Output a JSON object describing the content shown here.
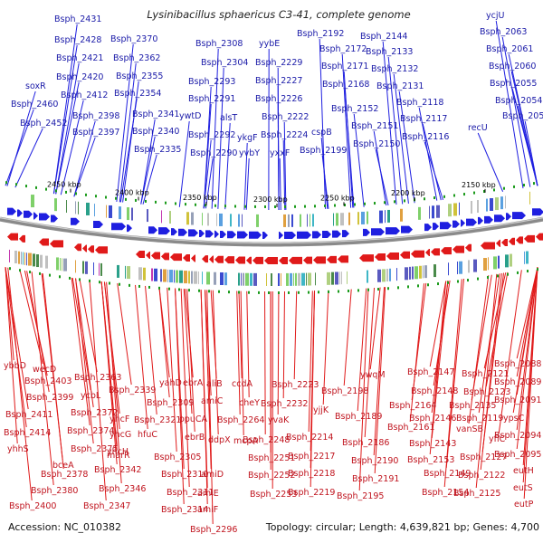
{
  "title": "Lysinibacillus sphaericus C3-41, complete genome",
  "footer": {
    "accession": "Accession: NC_010382",
    "summary": "Topology: circular; Length: 4,639,821 bp; Genes: 4,700"
  },
  "colors": {
    "forward": "#1f1fe0",
    "reverse": "#e01a1a",
    "backbone": "#8a8a8a",
    "tick_green": "#1a9a1a"
  },
  "ticks": [
    "2450 kbp",
    "2400 kbp",
    "2350 kbp",
    "2300 kbp",
    "2250 kbp",
    "2200 kbp",
    "2150 kbp"
  ],
  "top_labels": [
    "Bsph_2431",
    "Bsph_2428",
    "Bsph_2421",
    "Bsph_2420",
    "soxR",
    "Bsph_2412",
    "Bsph_2460",
    "Bsph_2452",
    "Bsph_2398",
    "Bsph_2397",
    "Bsph_2370",
    "Bsph_2362",
    "Bsph_2355",
    "Bsph_2354",
    "Bsph_2341",
    "Bsph_2340",
    "Bsph_2335",
    "Bsph_2308",
    "Bsph_2304",
    "Bsph_2293",
    "Bsph_2291",
    "ywtD",
    "Bsph_2292",
    "Bsph_2290",
    "alsT",
    "ykgF",
    "yvbY",
    "yybE",
    "Bsph_2229",
    "Bsph_2227",
    "Bsph_2226",
    "Bsph_2222",
    "Bsph_2224",
    "yxxF",
    "Bsph_2192",
    "Bsph_2172",
    "Bsph_2171",
    "Bsph_2168",
    "cspB",
    "Bsph_2199",
    "Bsph_2144",
    "Bsph_2133",
    "Bsph_2132",
    "Bsph_2131",
    "Bsph_2152",
    "Bsph_2151",
    "Bsph_2150",
    "Bsph_2118",
    "Bsph_2117",
    "Bsph_2116",
    "ycjU",
    "Bsph_2063",
    "Bsph_2061",
    "Bsph_2060",
    "Bsph_2055",
    "Bsph_2054",
    "Bsph_2053",
    "recU"
  ],
  "bottom_labels": [
    "ybbD",
    "wecD",
    "Bsph_2403",
    "Bsph_2399",
    "Bsph_2411",
    "Bsph_2414",
    "yhhS",
    "Bsph_2363",
    "ycbL",
    "Bsph_2372",
    "Bsph_2374",
    "Bsph_2375",
    "bceA",
    "Bsph_2378",
    "Bsph_2380",
    "Bsph_2400",
    "Bsph_2339",
    "yhcF",
    "yhcG",
    "yhcH",
    "Bsph_2342",
    "Bsph_2346",
    "Bsph_2347",
    "marR",
    "hfuC",
    "yahD",
    "Bsph_2321",
    "Bsph_2309",
    "ebrA",
    "opuCA",
    "ebrB",
    "Bsph_2305",
    "Bsph_2310",
    "Bsph_2311",
    "Bsph_2314",
    "Bsph_2296",
    "aliB",
    "amiC",
    "Bsph_2264",
    "ddpX",
    "amiD",
    "amiE",
    "amiF",
    "ccdA",
    "cheY",
    "mcpA",
    "Bsph_2223",
    "Bsph_2232",
    "yvaK",
    "Bsph_2248",
    "Bsph_2251",
    "Bsph_2252",
    "Bsph_2253",
    "yjjK",
    "Bsph_2214",
    "Bsph_2217",
    "Bsph_2218",
    "Bsph_2219",
    "Bsph_2198",
    "Bsph_2189",
    "Bsph_2186",
    "Bsph_2190",
    "Bsph_2191",
    "Bsph_2195",
    "ywqM",
    "Bsph_2147",
    "Bsph_2148",
    "Bsph_2164",
    "Bsph_2161",
    "Bsph_2146",
    "Bsph_2143",
    "Bsph_2153",
    "Bsph_2149",
    "Bsph_2154",
    "Bsph_2121",
    "Bsph_2123",
    "Bsph_2135",
    "vanSB",
    "Bsph_2119",
    "yflC",
    "Bsph_2127",
    "Bsph_2122",
    "Bsph_2125",
    "Bsph_2088",
    "Bsph_2089",
    "Bsph_2091",
    "ypsC",
    "Bsph_2094",
    "Bsph_2095",
    "eutH",
    "eutS",
    "eutP"
  ]
}
